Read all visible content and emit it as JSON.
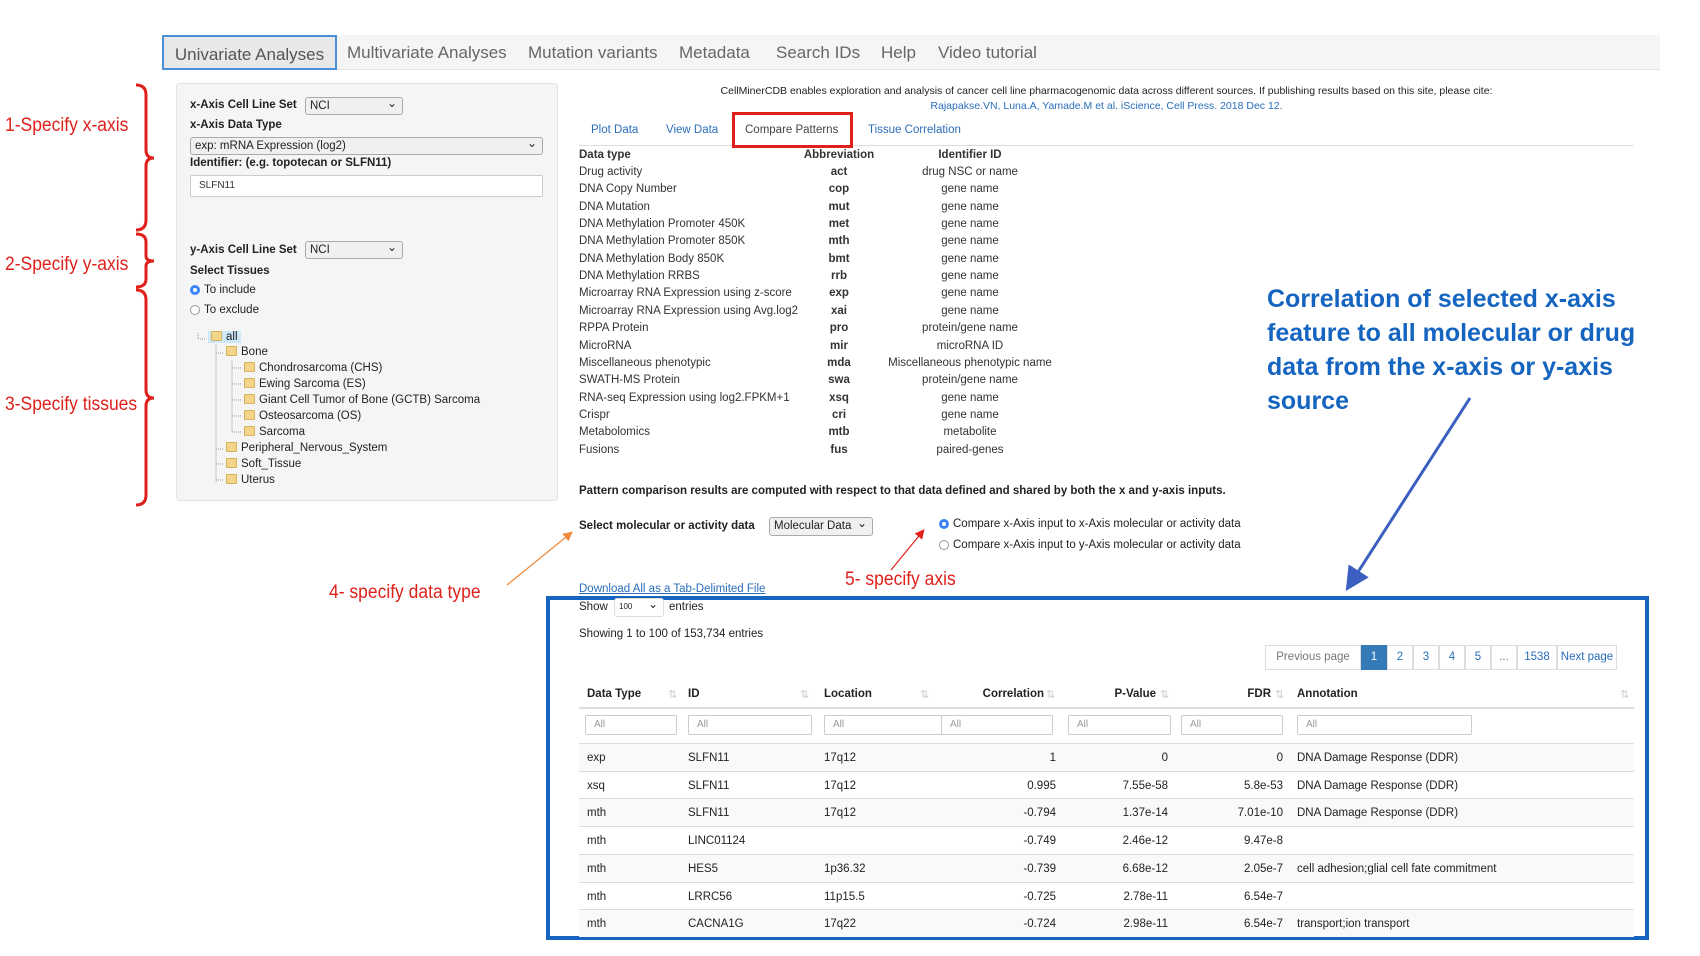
{
  "nav": {
    "tabs": [
      "Univariate Analyses",
      "Multivariate Analyses",
      "Mutation variants",
      "Metadata",
      "Search IDs",
      "Help",
      "Video tutorial"
    ],
    "active": "Univariate Analyses"
  },
  "left_panel": {
    "x_cell_line_label": "x-Axis Cell Line Set",
    "x_cell_line_value": "NCI",
    "x_data_type_label": "x-Axis Data Type",
    "x_data_type_value": "exp: mRNA Expression (log2)",
    "identifier_label": "Identifier: (e.g. topotecan or SLFN11)",
    "identifier_value": "SLFN11",
    "y_cell_line_label": "y-Axis Cell Line Set",
    "y_cell_line_value": "NCI",
    "select_tissues_label": "Select Tissues",
    "include_label": "To include",
    "exclude_label": "To exclude",
    "tree": {
      "root": "all",
      "bone": "Bone",
      "bone_children": [
        "Chondrosarcoma (CHS)",
        "Ewing Sarcoma (ES)",
        "Giant Cell Tumor of Bone (GCTB) Sarcoma",
        "Osteosarcoma (OS)",
        "Sarcoma"
      ],
      "others": [
        "Peripheral_Nervous_System",
        "Soft_Tissue",
        "Uterus"
      ]
    }
  },
  "header": {
    "intro": "CellMinerCDB enables exploration and analysis of cancer cell line pharmacogenomic data across different sources. If publishing results based on this site, please cite:",
    "citation": "Rajapakse.VN, Luna.A, Yamade.M et al. iScience, Cell Press. 2018 Dec 12."
  },
  "subtabs": [
    "Plot Data",
    "View Data",
    "Compare Patterns",
    "Tissue Correlation"
  ],
  "active_subtab": "Compare Patterns",
  "datatypes": {
    "headers": [
      "Data type",
      "Abbreviation",
      "Identifier ID"
    ],
    "rows": [
      [
        "Drug activity",
        "act",
        "drug NSC or name"
      ],
      [
        "DNA Copy Number",
        "cop",
        "gene name"
      ],
      [
        "DNA Mutation",
        "mut",
        "gene name"
      ],
      [
        "DNA Methylation Promoter 450K",
        "met",
        "gene name"
      ],
      [
        "DNA Methylation Promoter 850K",
        "mth",
        "gene name"
      ],
      [
        "DNA Methylation Body 850K",
        "bmt",
        "gene name"
      ],
      [
        "DNA Methylation RRBS",
        "rrb",
        "gene name"
      ],
      [
        "Microarray RNA Expression using z-score",
        "exp",
        "gene name"
      ],
      [
        "Microarray RNA Expression using Avg.log2",
        "xai",
        "gene name"
      ],
      [
        "RPPA Protein",
        "pro",
        "protein/gene name"
      ],
      [
        "MicroRNA",
        "mir",
        "microRNA ID"
      ],
      [
        "Miscellaneous phenotypic",
        "mda",
        "Miscellaneous phenotypic name"
      ],
      [
        "SWATH-MS Protein",
        "swa",
        "protein/gene name"
      ],
      [
        "RNA-seq Expression using log2.FPKM+1",
        "xsq",
        "gene name"
      ],
      [
        "Crispr",
        "cri",
        "gene name"
      ],
      [
        "Metabolomics",
        "mtb",
        "metabolite"
      ],
      [
        "Fusions",
        "fus",
        "paired-genes"
      ]
    ]
  },
  "pattern_note": "Pattern comparison results are computed with respect to that data defined and shared by both the x and y-axis inputs.",
  "select_data_label": "Select molecular or activity data",
  "select_data_value": "Molecular Data",
  "compare_x": "Compare x-Axis input to x-Axis molecular or activity data",
  "compare_y": "Compare x-Axis input to y-Axis molecular or activity data",
  "download_link": "Download All as a Tab-Delimited File",
  "show": {
    "prefix": "Show",
    "value": "100",
    "suffix": "entries"
  },
  "showing": "Showing 1 to 100 of 153,734 entries",
  "pagination": [
    "Previous page",
    "1",
    "2",
    "3",
    "4",
    "5",
    "...",
    "1538",
    "Next page"
  ],
  "results": {
    "headers": [
      "Data Type",
      "ID",
      "Location",
      "Correlation",
      "P-Value",
      "FDR",
      "Annotation"
    ],
    "filter_placeholder": "All",
    "rows": [
      [
        "exp",
        "SLFN11",
        "17q12",
        "1",
        "0",
        "0",
        "DNA Damage Response (DDR)"
      ],
      [
        "xsq",
        "SLFN11",
        "17q12",
        "0.995",
        "7.55e-58",
        "5.8e-53",
        "DNA Damage Response (DDR)"
      ],
      [
        "mth",
        "SLFN11",
        "17q12",
        "-0.794",
        "1.37e-14",
        "7.01e-10",
        "DNA Damage Response (DDR)"
      ],
      [
        "mth",
        "LINC01124",
        "",
        "-0.749",
        "2.46e-12",
        "9.47e-8",
        ""
      ],
      [
        "mth",
        "HES5",
        "1p36.32",
        "-0.739",
        "6.68e-12",
        "2.05e-7",
        "cell adhesion;glial cell fate commitment"
      ],
      [
        "mth",
        "LRRC56",
        "11p15.5",
        "-0.725",
        "2.78e-11",
        "6.54e-7",
        ""
      ],
      [
        "mth",
        "CACNA1G",
        "17q22",
        "-0.724",
        "2.98e-11",
        "6.54e-7",
        "transport;ion transport"
      ]
    ]
  },
  "annotations": {
    "step1": "1-Specify x-axis",
    "step2": "2-Specify y-axis",
    "step3": "3-Specify tissues",
    "step4": "4- specify data type",
    "step5": "5- specify axis",
    "note_lines": [
      "Correlation of selected x-axis",
      "feature to all molecular or drug",
      "data from the x-axis or y-axis",
      "source"
    ]
  },
  "colors": {
    "annotation_red": "#e0201b",
    "annotation_blue": "#1565c0",
    "link": "#2a6ebb",
    "active_page": "#337ab7",
    "arrow_orange": "#f08a3c"
  }
}
